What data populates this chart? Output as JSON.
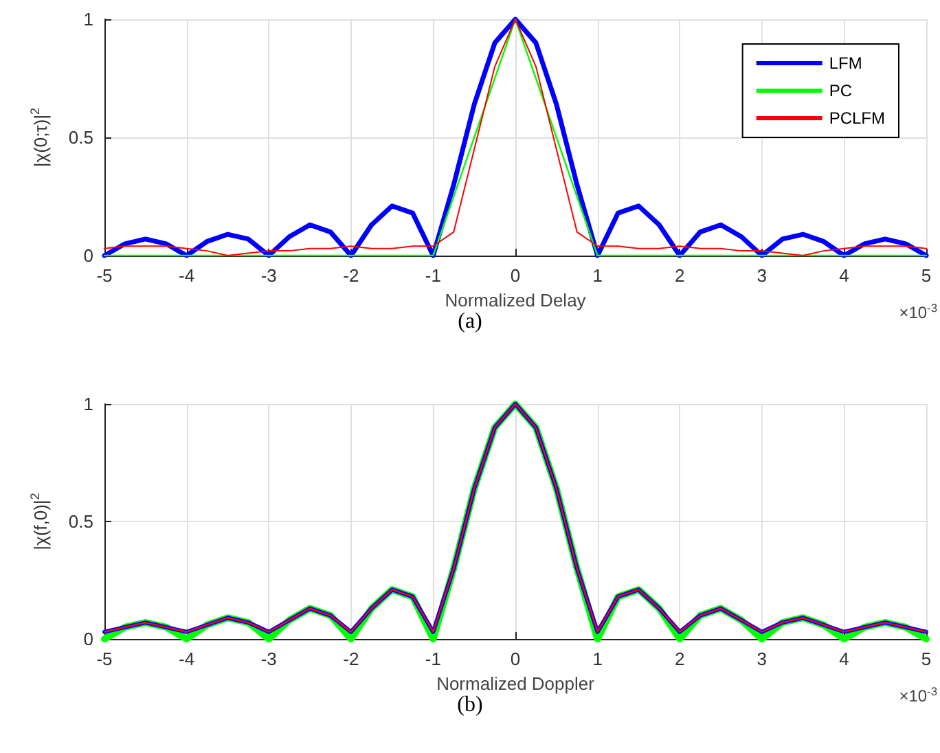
{
  "chart_data": [
    {
      "type": "line",
      "xlabel": "Normalized Delay",
      "ylabel": "|χ(0;τ)|$^{2}$",
      "annotations": [
        "×10$^{-3}$",
        "(a)"
      ],
      "x": [
        -5,
        -4.75,
        -4.5,
        -4.25,
        -4,
        -3.75,
        -3.5,
        -3.25,
        -3,
        -2.75,
        -2.5,
        -2.25,
        -2,
        -1.75,
        -1.5,
        -1.25,
        -1,
        -0.75,
        -0.5,
        -0.25,
        0,
        0.25,
        0.5,
        0.75,
        1,
        1.25,
        1.5,
        1.75,
        2,
        2.25,
        2.5,
        2.75,
        3,
        3.25,
        3.5,
        3.75,
        4,
        4.25,
        4.5,
        4.75,
        5
      ],
      "xlim": [
        -5,
        5
      ],
      "ylim": [
        0,
        1
      ],
      "xticks": [
        -5,
        -4,
        -3,
        -2,
        -1,
        0,
        1,
        2,
        3,
        4,
        5
      ],
      "yticks": [
        0,
        0.5,
        1
      ],
      "grid": true,
      "legend": "top right",
      "series": [
        {
          "name": "LFM",
          "color": "#0000ff",
          "values": [
            0,
            0.05,
            0.07,
            0.05,
            0,
            0.06,
            0.09,
            0.07,
            0,
            0.08,
            0.13,
            0.1,
            0,
            0.13,
            0.21,
            0.18,
            0,
            0.3,
            0.64,
            0.9,
            1,
            0.9,
            0.64,
            0.3,
            0,
            0.18,
            0.21,
            0.13,
            0,
            0.1,
            0.13,
            0.08,
            0,
            0.07,
            0.09,
            0.06,
            0,
            0.05,
            0.07,
            0.05,
            0
          ]
        },
        {
          "name": "PC",
          "color": "#00ff00",
          "values": [
            0,
            0,
            0,
            0,
            0,
            0,
            0,
            0,
            0,
            0,
            0,
            0,
            0,
            0,
            0,
            0,
            0,
            0.25,
            0.5,
            0.75,
            1,
            0.75,
            0.5,
            0.25,
            0,
            0,
            0,
            0,
            0,
            0,
            0,
            0,
            0,
            0,
            0,
            0,
            0,
            0,
            0,
            0,
            0
          ]
        },
        {
          "name": "PCLFM",
          "color": "#ff0000",
          "values": [
            0.03,
            0.04,
            0.04,
            0.04,
            0.03,
            0.02,
            0,
            0.01,
            0.02,
            0.02,
            0.03,
            0.03,
            0.04,
            0.03,
            0.03,
            0.04,
            0.04,
            0.1,
            0.45,
            0.8,
            1,
            0.8,
            0.45,
            0.1,
            0.04,
            0.04,
            0.03,
            0.03,
            0.04,
            0.03,
            0.03,
            0.02,
            0.02,
            0.01,
            0,
            0.02,
            0.03,
            0.04,
            0.04,
            0.04,
            0.03
          ]
        }
      ]
    },
    {
      "type": "line",
      "xlabel": "Normalized Doppler",
      "ylabel": "|χ(f,0)|$^{2}$",
      "annotations": [
        "×10$^{-3}$",
        "(b)"
      ],
      "x": [
        -5,
        -4.75,
        -4.5,
        -4.25,
        -4,
        -3.75,
        -3.5,
        -3.25,
        -3,
        -2.75,
        -2.5,
        -2.25,
        -2,
        -1.75,
        -1.5,
        -1.25,
        -1,
        -0.75,
        -0.5,
        -0.25,
        0,
        0.25,
        0.5,
        0.75,
        1,
        1.25,
        1.5,
        1.75,
        2,
        2.25,
        2.5,
        2.75,
        3,
        3.25,
        3.5,
        3.75,
        4,
        4.25,
        4.5,
        4.75,
        5
      ],
      "xlim": [
        -5,
        5
      ],
      "ylim": [
        0,
        1
      ],
      "xticks": [
        -5,
        -4,
        -3,
        -2,
        -1,
        0,
        1,
        2,
        3,
        4,
        5
      ],
      "yticks": [
        0,
        0.5,
        1
      ],
      "grid": true,
      "series": [
        {
          "color": "#00ff00",
          "values": [
            0,
            0.05,
            0.07,
            0.05,
            0,
            0.06,
            0.09,
            0.07,
            0,
            0.08,
            0.13,
            0.1,
            0,
            0.13,
            0.21,
            0.18,
            0,
            0.3,
            0.64,
            0.9,
            1,
            0.9,
            0.64,
            0.3,
            0,
            0.18,
            0.21,
            0.13,
            0,
            0.1,
            0.13,
            0.08,
            0,
            0.07,
            0.09,
            0.06,
            0,
            0.05,
            0.07,
            0.05,
            0
          ]
        },
        {
          "color": "#0000ff",
          "values": [
            0.03,
            0.05,
            0.07,
            0.05,
            0.03,
            0.06,
            0.09,
            0.07,
            0.03,
            0.08,
            0.13,
            0.1,
            0.03,
            0.13,
            0.21,
            0.18,
            0.03,
            0.3,
            0.64,
            0.9,
            1,
            0.9,
            0.64,
            0.3,
            0.03,
            0.18,
            0.21,
            0.13,
            0.03,
            0.1,
            0.13,
            0.08,
            0.03,
            0.07,
            0.09,
            0.06,
            0.03,
            0.05,
            0.07,
            0.05,
            0.03
          ]
        },
        {
          "color": "#ff0000",
          "values": [
            0.03,
            0.05,
            0.07,
            0.05,
            0.03,
            0.06,
            0.09,
            0.07,
            0.03,
            0.08,
            0.13,
            0.1,
            0.03,
            0.13,
            0.21,
            0.18,
            0.03,
            0.3,
            0.64,
            0.9,
            1,
            0.9,
            0.64,
            0.3,
            0.03,
            0.18,
            0.21,
            0.13,
            0.03,
            0.1,
            0.13,
            0.08,
            0.03,
            0.07,
            0.09,
            0.06,
            0.03,
            0.05,
            0.07,
            0.05,
            0.03
          ]
        }
      ]
    }
  ]
}
